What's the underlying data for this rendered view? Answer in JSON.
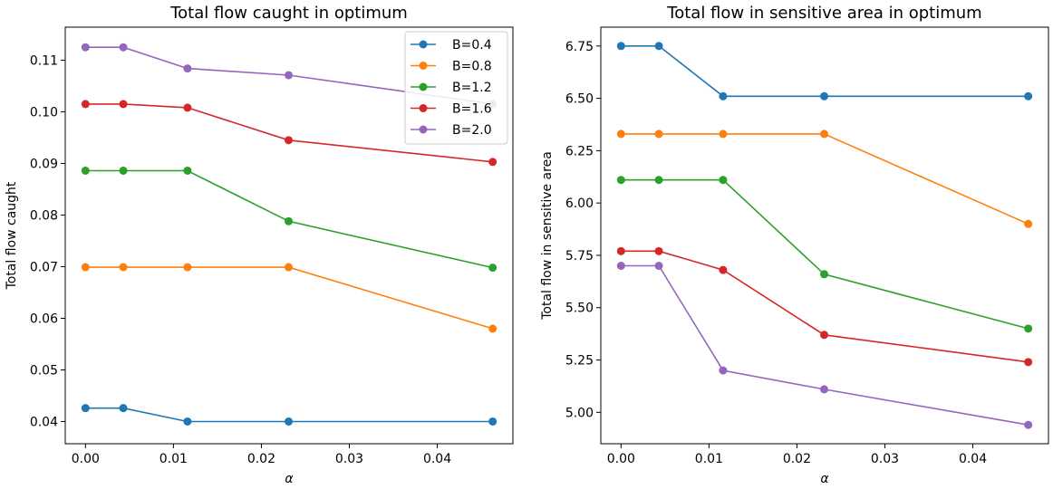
{
  "chart_data": [
    {
      "type": "line",
      "title": "Total flow caught in optimum",
      "xlabel": "α",
      "ylabel": "Total flow caught",
      "xlim": [
        -0.0023,
        0.0486
      ],
      "ylim": [
        0.0357,
        0.1164
      ],
      "xticks": [
        0.0,
        0.01,
        0.02,
        0.03,
        0.04
      ],
      "xtick_labels": [
        "0.00",
        "0.01",
        "0.02",
        "0.03",
        "0.04"
      ],
      "yticks": [
        0.04,
        0.05,
        0.06,
        0.07,
        0.08,
        0.09,
        0.1,
        0.11
      ],
      "ytick_labels": [
        "0.04",
        "0.05",
        "0.06",
        "0.07",
        "0.08",
        "0.09",
        "0.10",
        "0.11"
      ],
      "x": [
        0.0,
        0.0043,
        0.0116,
        0.0231,
        0.0463
      ],
      "legend": "top-right",
      "grid": false,
      "series": [
        {
          "name": "B=0.4",
          "color": "#1f77b4",
          "values": [
            0.0426,
            0.0426,
            0.04,
            0.04,
            0.04
          ]
        },
        {
          "name": "B=0.8",
          "color": "#ff7f0e",
          "values": [
            0.0699,
            0.0699,
            0.0699,
            0.0699,
            0.058
          ]
        },
        {
          "name": "B=1.2",
          "color": "#2ca02c",
          "values": [
            0.0886,
            0.0886,
            0.0886,
            0.0788,
            0.0698
          ]
        },
        {
          "name": "B=1.6",
          "color": "#d62728",
          "values": [
            0.1015,
            0.1015,
            0.1008,
            0.0945,
            0.0903
          ]
        },
        {
          "name": "B=2.0",
          "color": "#9467bd",
          "values": [
            0.1125,
            0.1125,
            0.1084,
            0.1071,
            0.1015
          ]
        }
      ]
    },
    {
      "type": "line",
      "title": "Total flow in sensitive area in optimum",
      "xlabel": "α",
      "ylabel": "Total flow in sensitive area",
      "xlim": [
        -0.0023,
        0.0486
      ],
      "ylim": [
        4.85,
        6.84
      ],
      "xticks": [
        0.0,
        0.01,
        0.02,
        0.03,
        0.04
      ],
      "xtick_labels": [
        "0.00",
        "0.01",
        "0.02",
        "0.03",
        "0.04"
      ],
      "yticks": [
        5.0,
        5.25,
        5.5,
        5.75,
        6.0,
        6.25,
        6.5,
        6.75
      ],
      "ytick_labels": [
        "5.00",
        "5.25",
        "5.50",
        "5.75",
        "6.00",
        "6.25",
        "6.50",
        "6.75"
      ],
      "x": [
        0.0,
        0.0043,
        0.0116,
        0.0231,
        0.0463
      ],
      "grid": false,
      "series": [
        {
          "color": "#1f77b4",
          "values": [
            6.75,
            6.75,
            6.51,
            6.51,
            6.51
          ]
        },
        {
          "color": "#ff7f0e",
          "values": [
            6.33,
            6.33,
            6.33,
            6.33,
            5.9
          ]
        },
        {
          "color": "#2ca02c",
          "values": [
            6.11,
            6.11,
            6.11,
            5.66,
            5.4
          ]
        },
        {
          "color": "#d62728",
          "values": [
            5.77,
            5.77,
            5.68,
            5.37,
            5.24
          ]
        },
        {
          "color": "#9467bd",
          "values": [
            5.7,
            5.7,
            5.2,
            5.11,
            4.94
          ]
        }
      ]
    }
  ]
}
